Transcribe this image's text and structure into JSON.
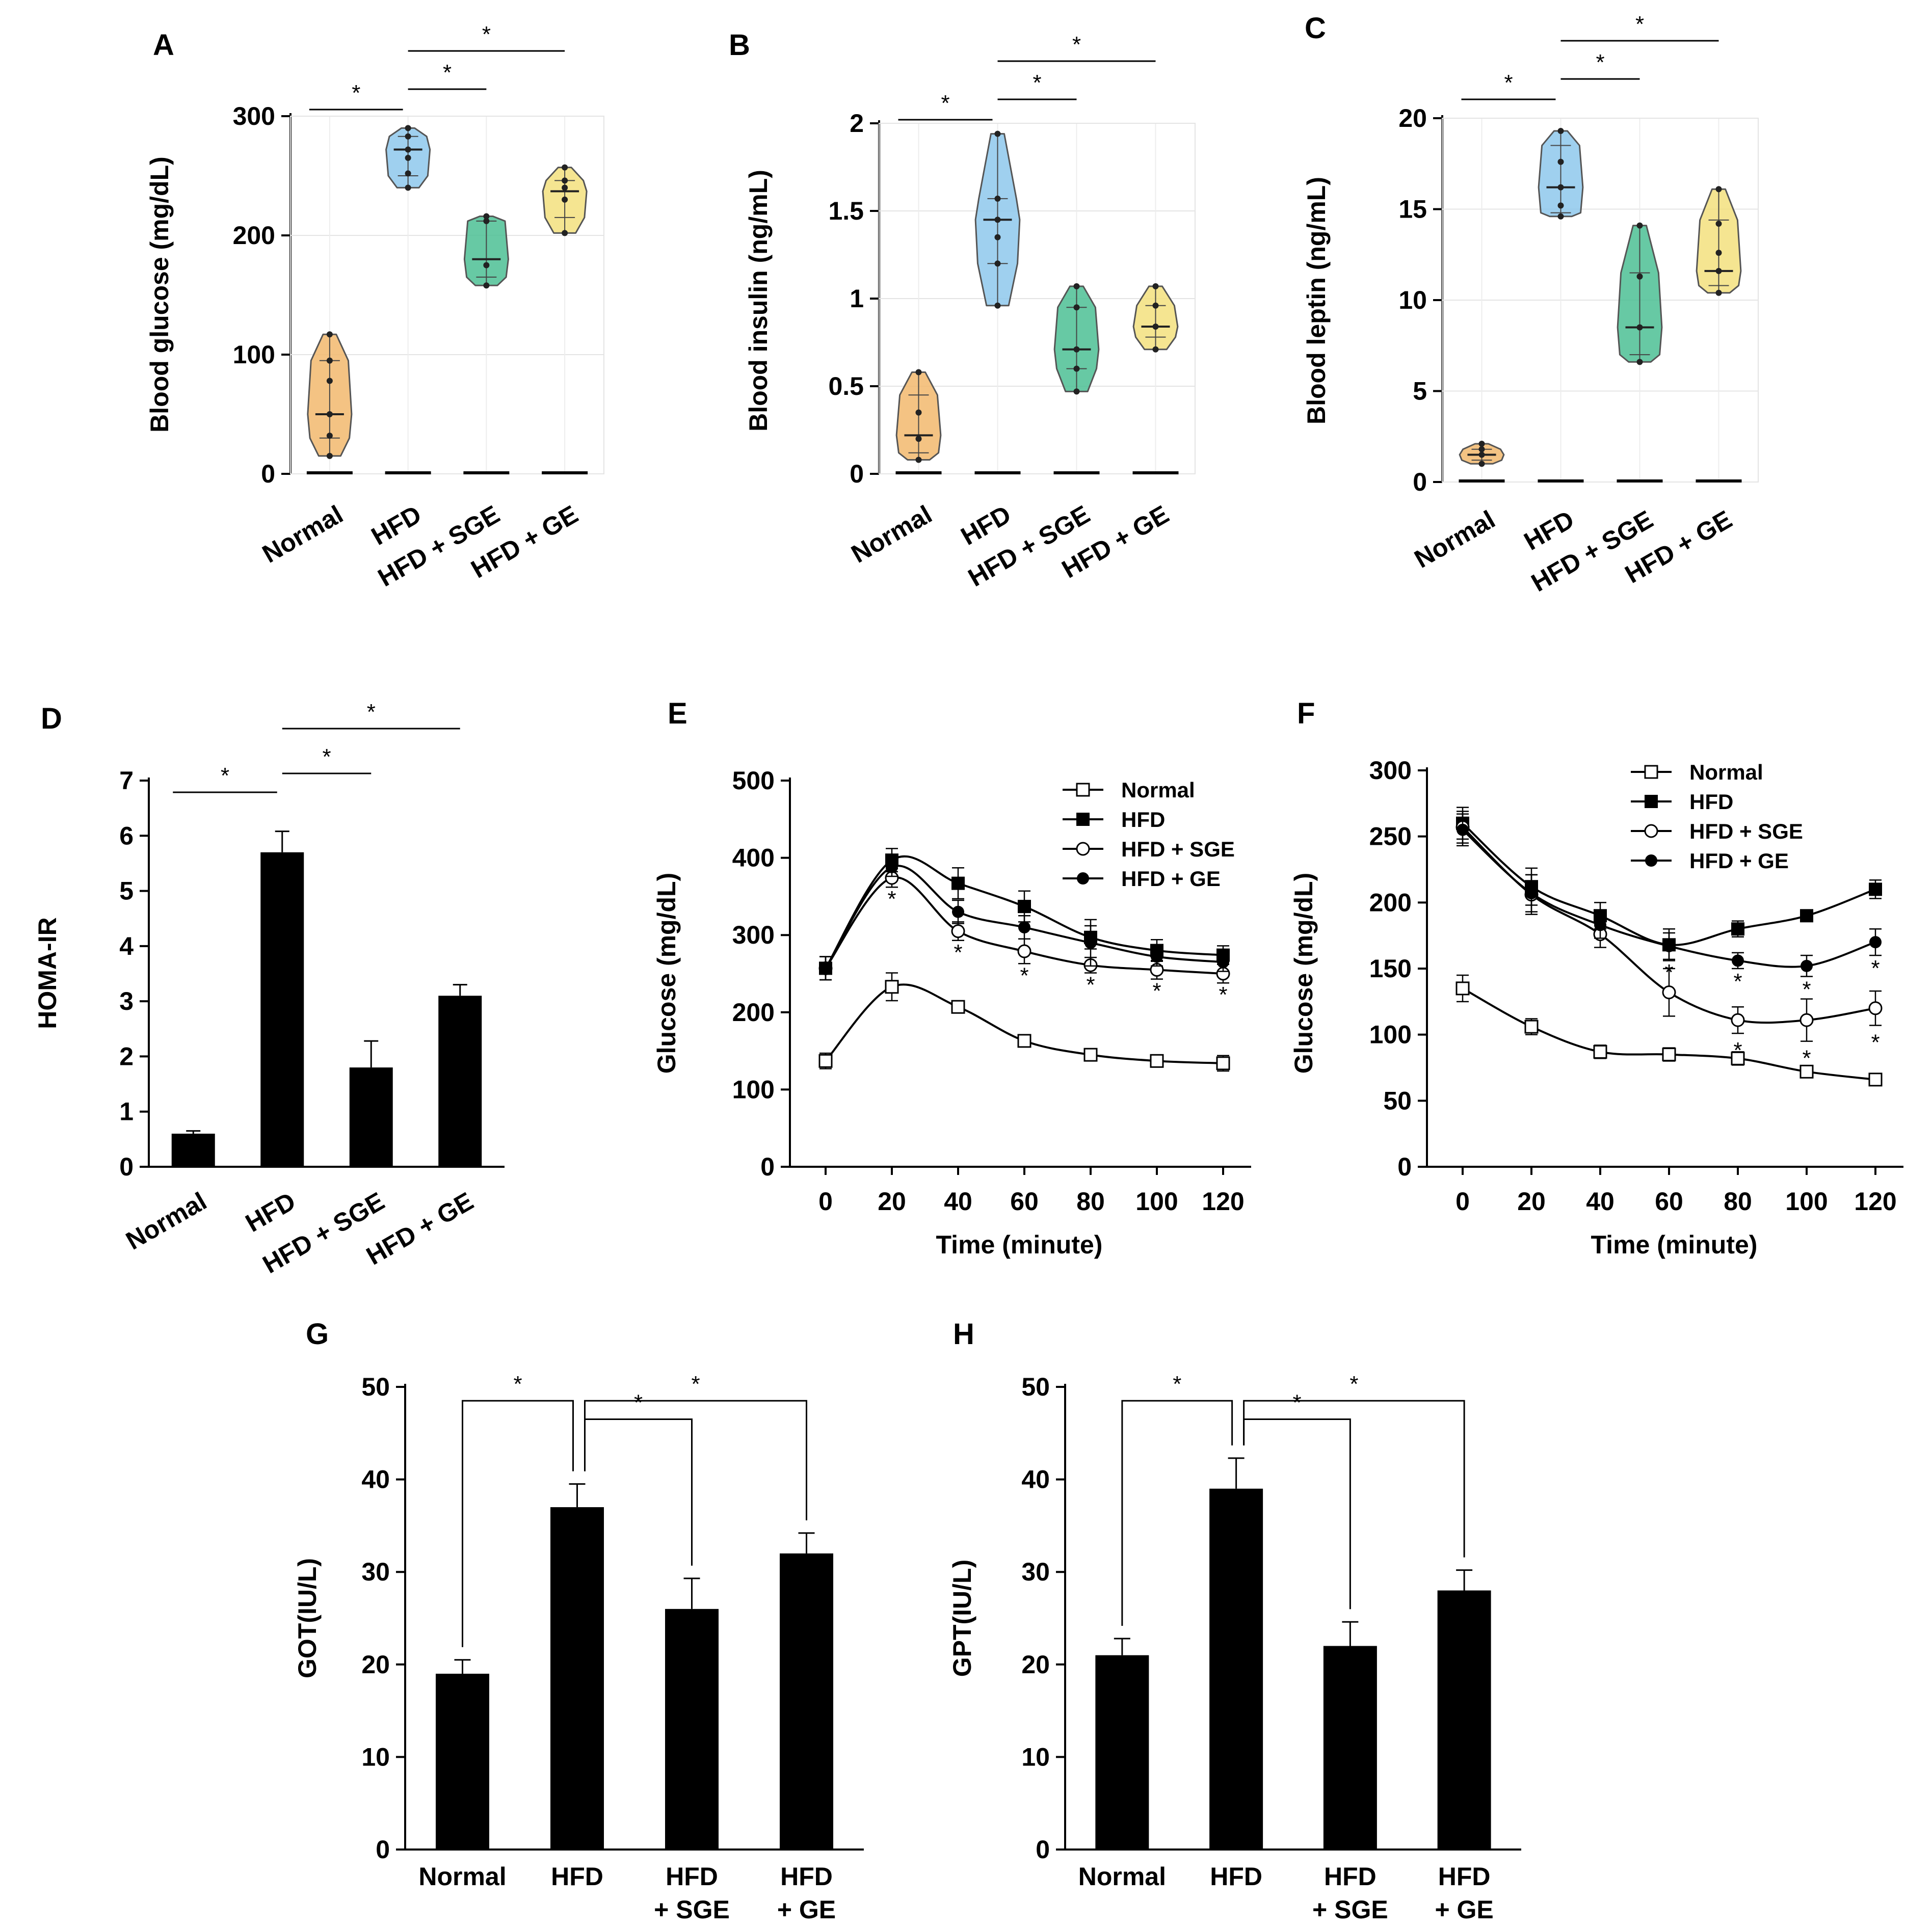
{
  "figure": {
    "description_none": ""
  },
  "chart_data": [
    {
      "id": "A",
      "letter": "A",
      "type": "violin",
      "ylabel": "Blood glucose (mg/dL)",
      "ylim": [
        0,
        300
      ],
      "yticks": [
        "0",
        "100",
        "200",
        "300"
      ],
      "ytick_values": [
        0,
        100,
        200,
        300
      ],
      "categories": [
        "Normal",
        "HFD",
        "HFD + SGE",
        "HFD + GE"
      ],
      "groups": [
        {
          "min": 15,
          "q1": 30,
          "median": 50,
          "q3": 95,
          "max": 117,
          "points": [
            15,
            32,
            50,
            78,
            95,
            117
          ]
        },
        {
          "min": 240,
          "q1": 250,
          "median": 272,
          "q3": 283,
          "max": 290,
          "points": [
            240,
            252,
            265,
            272,
            283,
            290
          ]
        },
        {
          "min": 158,
          "q1": 165,
          "median": 180,
          "q3": 212,
          "max": 216,
          "points": [
            158,
            175,
            212,
            216
          ]
        },
        {
          "min": 202,
          "q1": 215,
          "median": 237,
          "q3": 246,
          "max": 257,
          "points": [
            202,
            230,
            240,
            246,
            257
          ]
        }
      ],
      "colors": [
        "#f2b96d",
        "#8ec8ec",
        "#4cbf94",
        "#f3e07e"
      ],
      "significance": [
        {
          "from": 0,
          "to": 1,
          "label": "*"
        },
        {
          "from": 1,
          "to": 2,
          "label": "*"
        },
        {
          "from": 1,
          "to": 3,
          "label": "*"
        }
      ]
    },
    {
      "id": "B",
      "letter": "B",
      "type": "violin",
      "ylabel": "Blood insulin (ng/mL)",
      "ylim": [
        0,
        2
      ],
      "yticks": [
        "0",
        "0.5",
        "1",
        "1.5",
        "2"
      ],
      "ytick_values": [
        0,
        0.5,
        1,
        1.5,
        2
      ],
      "categories": [
        "Normal",
        "HFD",
        "HFD + SGE",
        "HFD + GE"
      ],
      "groups": [
        {
          "min": 0.08,
          "q1": 0.12,
          "median": 0.22,
          "q3": 0.45,
          "max": 0.58,
          "points": [
            0.08,
            0.2,
            0.35,
            0.58
          ]
        },
        {
          "min": 0.96,
          "q1": 1.2,
          "median": 1.45,
          "q3": 1.57,
          "max": 1.94,
          "points": [
            0.96,
            1.2,
            1.35,
            1.45,
            1.57,
            1.94
          ]
        },
        {
          "min": 0.47,
          "q1": 0.6,
          "median": 0.71,
          "q3": 0.95,
          "max": 1.07,
          "points": [
            0.47,
            0.6,
            0.71,
            0.95,
            1.07
          ]
        },
        {
          "min": 0.71,
          "q1": 0.78,
          "median": 0.84,
          "q3": 0.96,
          "max": 1.07,
          "points": [
            0.71,
            0.84,
            0.96,
            1.07
          ]
        }
      ],
      "colors": [
        "#f2b96d",
        "#8ec8ec",
        "#4cbf94",
        "#f3e07e"
      ],
      "significance": [
        {
          "from": 0,
          "to": 1,
          "label": "*"
        },
        {
          "from": 1,
          "to": 2,
          "label": "*"
        },
        {
          "from": 1,
          "to": 3,
          "label": "*"
        }
      ]
    },
    {
      "id": "C",
      "letter": "C",
      "type": "violin",
      "ylabel": "Blood leptin (ng/mL)",
      "ylim": [
        0,
        20
      ],
      "yticks": [
        "0",
        "5",
        "10",
        "15",
        "20"
      ],
      "ytick_values": [
        0,
        5,
        10,
        15,
        20
      ],
      "categories": [
        "Normal",
        "HFD",
        "HFD + SGE",
        "HFD + GE"
      ],
      "groups": [
        {
          "min": 1.0,
          "q1": 1.2,
          "median": 1.5,
          "q3": 1.8,
          "max": 2.1,
          "points": [
            1.0,
            1.5,
            1.8,
            2.1
          ]
        },
        {
          "min": 14.6,
          "q1": 14.8,
          "median": 16.2,
          "q3": 18.5,
          "max": 19.3,
          "points": [
            14.6,
            15.2,
            16.2,
            17.6,
            19.3
          ]
        },
        {
          "min": 6.6,
          "q1": 7.0,
          "median": 8.5,
          "q3": 11.5,
          "max": 14.1,
          "points": [
            6.6,
            8.5,
            11.3,
            14.1
          ]
        },
        {
          "min": 10.4,
          "q1": 10.8,
          "median": 11.6,
          "q3": 14.4,
          "max": 16.1,
          "points": [
            10.4,
            11.6,
            12.6,
            14.2,
            16.1
          ]
        }
      ],
      "colors": [
        "#f2b96d",
        "#8ec8ec",
        "#4cbf94",
        "#f3e07e"
      ],
      "significance": [
        {
          "from": 0,
          "to": 1,
          "label": "*"
        },
        {
          "from": 1,
          "to": 2,
          "label": "*"
        },
        {
          "from": 1,
          "to": 3,
          "label": "*"
        }
      ]
    },
    {
      "id": "D",
      "letter": "D",
      "type": "bar",
      "ylabel": "HOMA-IR",
      "ylim": [
        0,
        7
      ],
      "yticks": [
        "0",
        "1",
        "2",
        "3",
        "4",
        "5",
        "6",
        "7"
      ],
      "ytick_values": [
        0,
        1,
        2,
        3,
        4,
        5,
        6,
        7
      ],
      "categories": [
        "Normal",
        "HFD",
        "HFD + SGE",
        "HFD + GE"
      ],
      "values": [
        0.6,
        5.7,
        1.8,
        3.1
      ],
      "errors": [
        0.05,
        0.38,
        0.48,
        0.2
      ],
      "significance": [
        {
          "from": 0,
          "to": 1,
          "label": "*"
        },
        {
          "from": 1,
          "to": 2,
          "label": "*"
        },
        {
          "from": 1,
          "to": 3,
          "label": "*"
        }
      ]
    },
    {
      "id": "E",
      "letter": "E",
      "type": "line",
      "xlabel": "Time (minute)",
      "ylabel": "Glucose (mg/dL)",
      "x": [
        0,
        20,
        40,
        60,
        80,
        100,
        120
      ],
      "xticks": [
        "0",
        "20",
        "40",
        "60",
        "80",
        "100",
        "120"
      ],
      "ylim": [
        0,
        500
      ],
      "yticks": [
        "0",
        "100",
        "200",
        "300",
        "400",
        "500"
      ],
      "ytick_values": [
        0,
        100,
        200,
        300,
        400,
        500
      ],
      "series": [
        {
          "name": "Normal",
          "marker": "open-square",
          "values": [
            137,
            233,
            207,
            163,
            145,
            137,
            134
          ],
          "errors": [
            10,
            18,
            5,
            6,
            5,
            5,
            10
          ]
        },
        {
          "name": "HFD",
          "marker": "filled-square",
          "values": [
            257,
            397,
            367,
            337,
            297,
            280,
            274
          ],
          "errors": [
            15,
            15,
            20,
            20,
            15,
            14,
            12
          ]
        },
        {
          "name": "HFD + SGE",
          "marker": "open-circle",
          "values": [
            257,
            374,
            305,
            279,
            261,
            255,
            250
          ],
          "errors": [
            15,
            12,
            12,
            16,
            10,
            12,
            12
          ]
        },
        {
          "name": "HFD + GE",
          "marker": "filled-circle",
          "values": [
            257,
            388,
            330,
            310,
            290,
            272,
            265
          ],
          "errors": [
            15,
            12,
            15,
            15,
            30,
            12,
            12
          ]
        }
      ],
      "annotations": [
        {
          "x": 20,
          "label": "*"
        },
        {
          "x": 40,
          "label": "*"
        },
        {
          "x": 60,
          "label": "*"
        },
        {
          "x": 80,
          "label": "*"
        },
        {
          "x": 100,
          "label": "*"
        },
        {
          "x": 120,
          "label": "*"
        }
      ]
    },
    {
      "id": "F",
      "letter": "F",
      "type": "line",
      "xlabel": "Time (minute)",
      "ylabel": "Glucose (mg/dL)",
      "x": [
        0,
        20,
        40,
        60,
        80,
        100,
        120
      ],
      "xticks": [
        "0",
        "20",
        "40",
        "60",
        "80",
        "100",
        "120"
      ],
      "ylim": [
        0,
        300
      ],
      "yticks": [
        "0",
        "50",
        "100",
        "150",
        "200",
        "250",
        "300"
      ],
      "ytick_values": [
        0,
        50,
        100,
        150,
        200,
        250,
        300
      ],
      "series": [
        {
          "name": "Normal",
          "marker": "open-square",
          "values": [
            135,
            106,
            87,
            85,
            82,
            72,
            66
          ],
          "errors": [
            10,
            6,
            5,
            5,
            5,
            3,
            3
          ]
        },
        {
          "name": "HFD",
          "marker": "filled-square",
          "values": [
            260,
            212,
            190,
            168,
            180,
            190,
            210
          ],
          "errors": [
            12,
            14,
            10,
            12,
            6,
            4,
            7
          ]
        },
        {
          "name": "HFD + SGE",
          "marker": "open-circle",
          "values": [
            257,
            206,
            176,
            132,
            111,
            111,
            120
          ],
          "errors": [
            12,
            15,
            10,
            18,
            10,
            16,
            13
          ]
        },
        {
          "name": "HFD + GE",
          "marker": "filled-circle",
          "values": [
            255,
            207,
            183,
            167,
            156,
            152,
            170
          ],
          "errors": [
            12,
            14,
            10,
            10,
            6,
            8,
            10
          ]
        }
      ],
      "annotations": [
        {
          "x": 60,
          "label": "*"
        },
        {
          "x": 80,
          "label": "*"
        },
        {
          "x": 80,
          "label": "*",
          "level": 2
        },
        {
          "x": 100,
          "label": "*"
        },
        {
          "x": 100,
          "label": "*",
          "level": 2
        },
        {
          "x": 120,
          "label": "*"
        },
        {
          "x": 120,
          "label": "*",
          "level": 2
        }
      ]
    },
    {
      "id": "G",
      "letter": "G",
      "type": "bar",
      "ylabel": "GOT(IU/L)",
      "ylim": [
        0,
        50
      ],
      "yticks": [
        "0",
        "10",
        "20",
        "30",
        "40",
        "50"
      ],
      "ytick_values": [
        0,
        10,
        20,
        30,
        40,
        50
      ],
      "categories": [
        [
          "Normal"
        ],
        [
          "HFD"
        ],
        [
          "HFD",
          "+ SGE"
        ],
        [
          "HFD",
          "+ GE"
        ]
      ],
      "values": [
        19,
        37,
        26,
        32
      ],
      "errors": [
        1.5,
        2.5,
        3.3,
        2.2
      ],
      "significance": [
        {
          "from": 0,
          "to": 1,
          "label": "*"
        },
        {
          "from": 1,
          "to": 2,
          "label": "*"
        },
        {
          "from": 1,
          "to": 3,
          "label": "*"
        }
      ]
    },
    {
      "id": "H",
      "letter": "H",
      "type": "bar",
      "ylabel": "GPT(IU/L)",
      "ylim": [
        0,
        50
      ],
      "yticks": [
        "0",
        "10",
        "20",
        "30",
        "40",
        "50"
      ],
      "ytick_values": [
        0,
        10,
        20,
        30,
        40,
        50
      ],
      "categories": [
        [
          "Normal"
        ],
        [
          "HFD"
        ],
        [
          "HFD",
          "+ SGE"
        ],
        [
          "HFD",
          "+ GE"
        ]
      ],
      "values": [
        21,
        39,
        22,
        28
      ],
      "errors": [
        1.8,
        3.3,
        2.6,
        2.2
      ],
      "significance": [
        {
          "from": 0,
          "to": 1,
          "label": "*"
        },
        {
          "from": 1,
          "to": 2,
          "label": "*"
        },
        {
          "from": 1,
          "to": 3,
          "label": "*"
        }
      ]
    }
  ]
}
